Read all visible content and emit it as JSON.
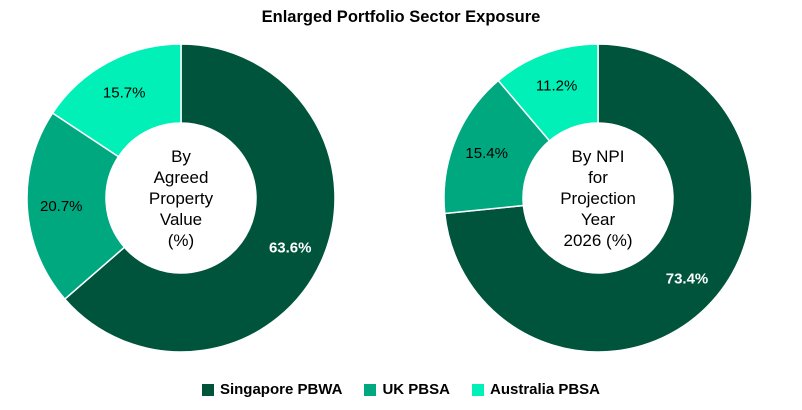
{
  "title": "Enlarged Portfolio Sector Exposure",
  "legend": [
    {
      "label": "Singapore PBWA",
      "color": "#00543C"
    },
    {
      "label": "UK PBSA",
      "color": "#00A880"
    },
    {
      "label": "Australia PBSA",
      "color": "#00F0B8"
    }
  ],
  "chart_data": [
    {
      "type": "pie",
      "variant": "donut",
      "title": "By Agreed Property Value (%)",
      "center_lines": [
        "By",
        "Agreed",
        "Property",
        "Value",
        "(%)"
      ],
      "categories": [
        "Singapore PBWA",
        "UK PBSA",
        "Australia PBSA"
      ],
      "values": [
        63.6,
        20.7,
        15.7
      ],
      "labels": [
        "63.6%",
        "20.7%",
        "15.7%"
      ],
      "label_colors": [
        "#ffffff",
        "#000000",
        "#000000"
      ],
      "colors": [
        "#00543C",
        "#00A880",
        "#00F0B8"
      ]
    },
    {
      "type": "pie",
      "variant": "donut",
      "title": "By NPI for Projection Year 2026 (%)",
      "center_lines": [
        "By NPI",
        "for",
        "Projection",
        "Year",
        "2026 (%)"
      ],
      "categories": [
        "Singapore PBWA",
        "UK PBSA",
        "Australia PBSA"
      ],
      "values": [
        73.4,
        15.4,
        11.2
      ],
      "labels": [
        "73.4%",
        "15.4%",
        "11.2%"
      ],
      "label_colors": [
        "#ffffff",
        "#000000",
        "#000000"
      ],
      "colors": [
        "#00543C",
        "#00A880",
        "#00F0B8"
      ]
    }
  ]
}
